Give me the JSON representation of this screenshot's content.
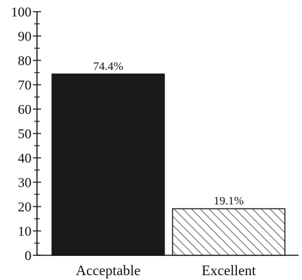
{
  "chart_data": {
    "type": "bar",
    "categories": [
      "Acceptable",
      "Excellent"
    ],
    "values": [
      74.4,
      19.1
    ],
    "data_labels": [
      "74.4%",
      "19.1%"
    ],
    "ylim": [
      0,
      100
    ],
    "y_ticks": [
      "0",
      "10",
      "20",
      "30",
      "40",
      "50",
      "60",
      "70",
      "80",
      "90",
      "100"
    ],
    "title": "",
    "xlabel": "",
    "ylabel": "",
    "grid": false,
    "bar_styles": [
      "solid",
      "hatched"
    ],
    "colors": {
      "bar_fill": "#1a1a1a",
      "axis": "#111111",
      "hatch": "#111111"
    }
  }
}
